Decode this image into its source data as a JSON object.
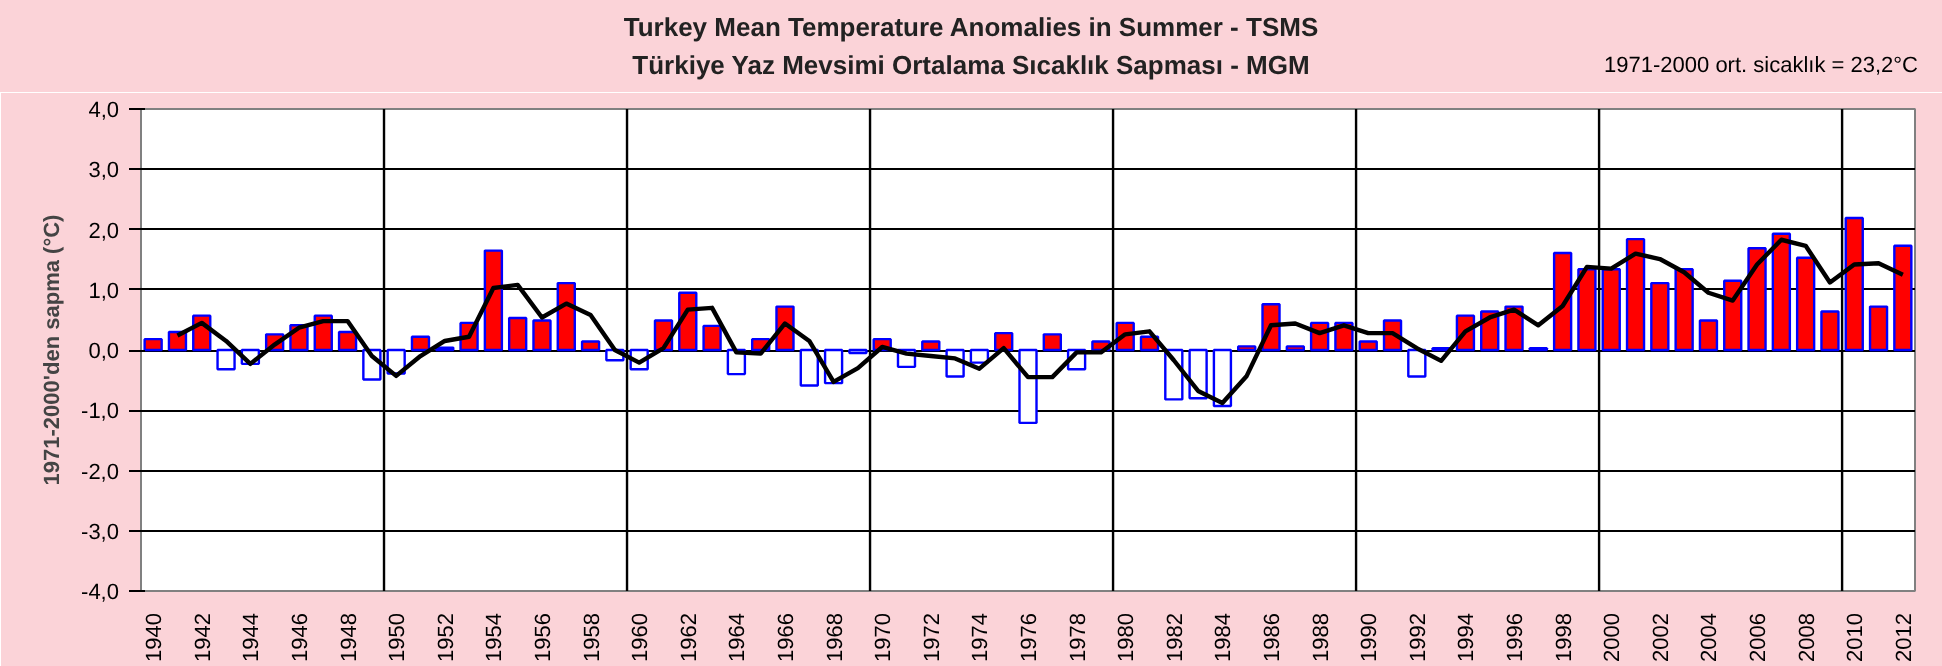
{
  "chart_data": {
    "type": "bar",
    "title": "Turkey Mean Temperature Anomalies in Summer - TSMS",
    "subtitle": "Türkiye  Yaz Mevsimi Ortalama Sıcaklık Sapması - MGM",
    "ylabel": "1971-2000'den sapma (°C)",
    "annotations": [
      "1971-2000 ort. sicaklık = 23,2°C"
    ],
    "x": [
      1940,
      1941,
      1942,
      1943,
      1944,
      1945,
      1946,
      1947,
      1948,
      1949,
      1950,
      1951,
      1952,
      1953,
      1954,
      1955,
      1956,
      1957,
      1958,
      1959,
      1960,
      1961,
      1962,
      1963,
      1964,
      1965,
      1966,
      1967,
      1968,
      1969,
      1970,
      1971,
      1972,
      1973,
      1974,
      1975,
      1976,
      1977,
      1978,
      1979,
      1980,
      1981,
      1982,
      1983,
      1984,
      1985,
      1986,
      1987,
      1988,
      1989,
      1990,
      1991,
      1992,
      1993,
      1994,
      1995,
      1996,
      1997,
      1998,
      1999,
      2000,
      2001,
      2002,
      2003,
      2004,
      2005,
      2006,
      2007,
      2008,
      2009,
      2010,
      2011,
      2012
    ],
    "series": [
      {
        "values": [
          0.18,
          0.3,
          0.57,
          -0.32,
          -0.23,
          0.26,
          0.41,
          0.57,
          0.3,
          -0.49,
          -0.39,
          0.22,
          0.04,
          0.45,
          1.65,
          0.53,
          0.49,
          1.11,
          0.14,
          -0.17,
          -0.32,
          0.49,
          0.95,
          0.4,
          -0.4,
          0.18,
          0.72,
          -0.59,
          -0.55,
          -0.05,
          0.18,
          -0.28,
          0.14,
          -0.44,
          -0.21,
          0.28,
          -1.21,
          0.26,
          -0.32,
          0.14,
          0.45,
          0.22,
          -0.82,
          -0.8,
          -0.93,
          0.06,
          0.76,
          0.06,
          0.45,
          0.45,
          0.14,
          0.49,
          -0.44,
          0.03,
          0.57,
          0.64,
          0.72,
          0.03,
          1.61,
          1.34,
          1.34,
          1.84,
          1.11,
          1.34,
          0.49,
          1.15,
          1.69,
          1.93,
          1.53,
          0.64,
          2.19,
          0.72,
          1.73
        ],
        "colors": [
          "#ff0000",
          "#ff0000",
          "#ff0000",
          "#ffffff",
          "#ffffff",
          "#ff0000",
          "#ff0000",
          "#ff0000",
          "#ff0000",
          "#ffffff",
          "#ffffff",
          "#ff0000",
          "#ff0000",
          "#ff0000",
          "#ff0000",
          "#ff0000",
          "#ff0000",
          "#ff0000",
          "#ff0000",
          "#ffffff",
          "#ffffff",
          "#ff0000",
          "#ff0000",
          "#ff0000",
          "#ffffff",
          "#ff0000",
          "#ff0000",
          "#ffffff",
          "#ffffff",
          "#ffffff",
          "#ff0000",
          "#ffffff",
          "#ff0000",
          "#ffffff",
          "#ffffff",
          "#ff0000",
          "#ffffff",
          "#ff0000",
          "#ffffff",
          "#ff0000",
          "#ff0000",
          "#ff0000",
          "#ffffff",
          "#ffffff",
          "#ffffff",
          "#ff0000",
          "#ff0000",
          "#ff0000",
          "#ff0000",
          "#ff0000",
          "#ff0000",
          "#ff0000",
          "#ffffff",
          "#ff0000",
          "#ff0000",
          "#ff0000",
          "#ff0000",
          "#ff0000",
          "#ff0000",
          "#ff0000",
          "#ff0000",
          "#ff0000",
          "#ff0000",
          "#ff0000",
          "#ff0000",
          "#ff0000",
          "#ff0000",
          "#ff0000",
          "#ff0000",
          "#ff0000",
          "#ff0000",
          "#ff0000",
          "#ff0000"
        ]
      },
      {
        "type": "line",
        "color": "#000000",
        "x": [
          1941,
          1942,
          1943,
          1944,
          1945,
          1946,
          1947,
          1948,
          1949,
          1950,
          1951,
          1952,
          1953,
          1954,
          1955,
          1956,
          1957,
          1958,
          1959,
          1960,
          1961,
          1962,
          1963,
          1964,
          1965,
          1966,
          1967,
          1968,
          1969,
          1970,
          1971,
          1972,
          1973,
          1974,
          1975,
          1976,
          1977,
          1978,
          1979,
          1980,
          1981,
          1982,
          1983,
          1984,
          1985,
          1986,
          1987,
          1988,
          1989,
          1990,
          1991,
          1992,
          1993,
          1994,
          1995,
          1996,
          1997,
          1998,
          1999,
          2000,
          2001,
          2002,
          2003,
          2004,
          2005,
          2006,
          2007,
          2008,
          2009,
          2010,
          2011,
          2012
        ],
        "values": [
          0.24,
          0.45,
          0.15,
          -0.23,
          0.09,
          0.37,
          0.48,
          0.48,
          -0.1,
          -0.43,
          -0.1,
          0.15,
          0.22,
          1.03,
          1.08,
          0.54,
          0.77,
          0.58,
          0.0,
          -0.21,
          0.03,
          0.67,
          0.7,
          -0.04,
          -0.06,
          0.44,
          0.15,
          -0.53,
          -0.3,
          0.05,
          -0.06,
          -0.1,
          -0.14,
          -0.31,
          0.03,
          -0.45,
          -0.45,
          -0.04,
          -0.04,
          0.26,
          0.31,
          -0.17,
          -0.68,
          -0.88,
          -0.43,
          0.41,
          0.44,
          0.28,
          0.41,
          0.28,
          0.28,
          0.03,
          -0.18,
          0.31,
          0.54,
          0.67,
          0.41,
          0.73,
          1.38,
          1.35,
          1.6,
          1.51,
          1.29,
          0.95,
          0.82,
          1.42,
          1.83,
          1.73,
          1.12,
          1.42,
          1.44,
          1.25
        ]
      }
    ],
    "xlim": [
      1939.5,
      2012.5
    ],
    "xticks": [
      1940,
      1942,
      1944,
      1946,
      1948,
      1950,
      1952,
      1954,
      1956,
      1958,
      1960,
      1962,
      1964,
      1966,
      1968,
      1970,
      1972,
      1974,
      1976,
      1978,
      1980,
      1982,
      1984,
      1986,
      1988,
      1990,
      1992,
      1994,
      1996,
      1998,
      2000,
      2002,
      2004,
      2006,
      2008,
      2010,
      2012
    ],
    "ylim": [
      -4,
      4
    ],
    "yticks": [
      {
        "value": 4,
        "label": "4,0"
      },
      {
        "value": 3,
        "label": "3,0"
      },
      {
        "value": 2,
        "label": "2,0"
      },
      {
        "value": 1,
        "label": "1,0"
      },
      {
        "value": 0,
        "label": "0,0"
      },
      {
        "value": -1,
        "label": "-1,0"
      },
      {
        "value": -2,
        "label": "-2,0"
      },
      {
        "value": -3,
        "label": "-3,0"
      },
      {
        "value": -4,
        "label": "-4,0"
      }
    ],
    "ref_lines": [
      {
        "axis": "x",
        "value": 1949.5,
        "color": "#000000"
      },
      {
        "axis": "x",
        "value": 1959.5,
        "color": "#000000"
      },
      {
        "axis": "x",
        "value": 1969.5,
        "color": "#000000"
      },
      {
        "axis": "x",
        "value": 1979.5,
        "color": "#000000"
      },
      {
        "axis": "x",
        "value": 1989.5,
        "color": "#000000"
      },
      {
        "axis": "x",
        "value": 1999.5,
        "color": "#000000"
      },
      {
        "axis": "x",
        "value": 2009.5,
        "color": "#000000"
      }
    ],
    "grid": "y",
    "marker": "none",
    "line_style": "solid"
  }
}
